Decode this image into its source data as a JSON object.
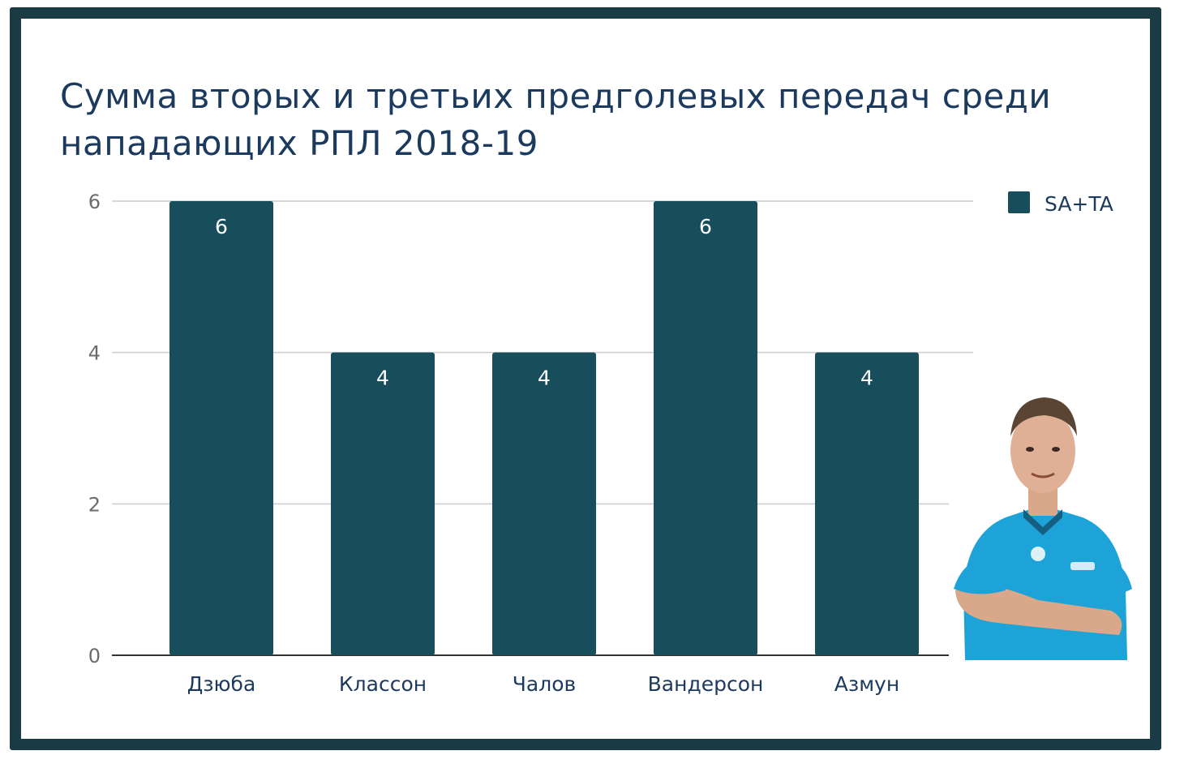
{
  "chart_data": {
    "type": "bar",
    "title": "Сумма вторых и третьих предголевых передач среди нападающих РПЛ 2018-19",
    "categories": [
      "Дзюба",
      "Классон",
      "Чалов",
      "Вандерсон",
      "Азмун"
    ],
    "series": [
      {
        "name": "SA+TA",
        "values": [
          6,
          4,
          4,
          6,
          4
        ]
      }
    ],
    "ylim": [
      0,
      6
    ],
    "yticks": [
      0,
      2,
      4,
      6
    ],
    "grid": true,
    "legend": "top-right",
    "data_labels": true
  },
  "colors": {
    "bar": "#184e5c",
    "frame": "#1a3a44",
    "title": "#1b3a5e",
    "grid": "#cccccc",
    "axis": "#333333"
  },
  "photo": {
    "icon": "player-photo",
    "jersey_color": "#1ea3d8"
  }
}
